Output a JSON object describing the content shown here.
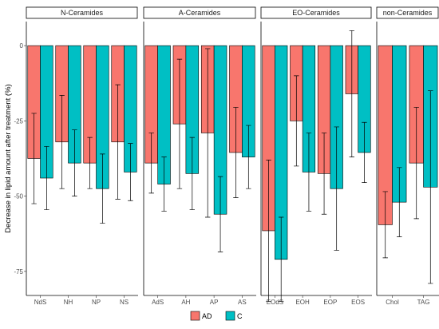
{
  "chart_data": {
    "type": "bar",
    "ylabel": "Decrease in lipid amount after treatment (%)",
    "xlabel": "",
    "ylim": [
      -83,
      8
    ],
    "yticks": [
      0,
      -25,
      -50,
      -75
    ],
    "ytick_labels": [
      "0",
      "-25",
      "-50",
      "-75"
    ],
    "legend": {
      "position": "bottom",
      "title": ""
    },
    "series": [
      {
        "name": "AD",
        "color": "#F8766D"
      },
      {
        "name": "C",
        "color": "#00BFC4"
      }
    ],
    "panels": [
      {
        "name": "N-Ceramides",
        "categories": [
          "NdS",
          "NH",
          "NP",
          "NS"
        ],
        "values": {
          "AD": [
            -37.5,
            -32,
            -39,
            -32
          ],
          "C": [
            -44,
            -39,
            -47.5,
            -42
          ]
        },
        "error": {
          "AD": [
            15,
            15.5,
            8.5,
            19
          ],
          "C": [
            10.5,
            11,
            11.5,
            9.5
          ]
        }
      },
      {
        "name": "A-Ceramides",
        "categories": [
          "AdS",
          "AH",
          "AP",
          "AS"
        ],
        "values": {
          "AD": [
            -39,
            -26,
            -29,
            -35.5
          ],
          "C": [
            -46,
            -42.5,
            -56,
            -37
          ]
        },
        "error": {
          "AD": [
            10,
            21.5,
            28,
            15
          ],
          "C": [
            9,
            12,
            12.5,
            10.5
          ]
        }
      },
      {
        "name": "EO-Ceramides",
        "categories": [
          "EOdS",
          "EOH",
          "EOP",
          "EOS"
        ],
        "values": {
          "AD": [
            -61.5,
            -25,
            -42.5,
            -16
          ],
          "C": [
            -71,
            -42,
            -47.5,
            -35.5
          ]
        },
        "error": {
          "AD": [
            23.5,
            15,
            13.5,
            21
          ],
          "C": [
            14,
            13,
            20.5,
            10
          ]
        }
      },
      {
        "name": "non-Ceramides",
        "categories": [
          "Chol",
          "TAG"
        ],
        "values": {
          "AD": [
            -59.5,
            -39
          ],
          "C": [
            -52,
            -47
          ]
        },
        "error": {
          "AD": [
            11,
            18.5
          ],
          "C": [
            11.5,
            32
          ]
        }
      }
    ]
  }
}
